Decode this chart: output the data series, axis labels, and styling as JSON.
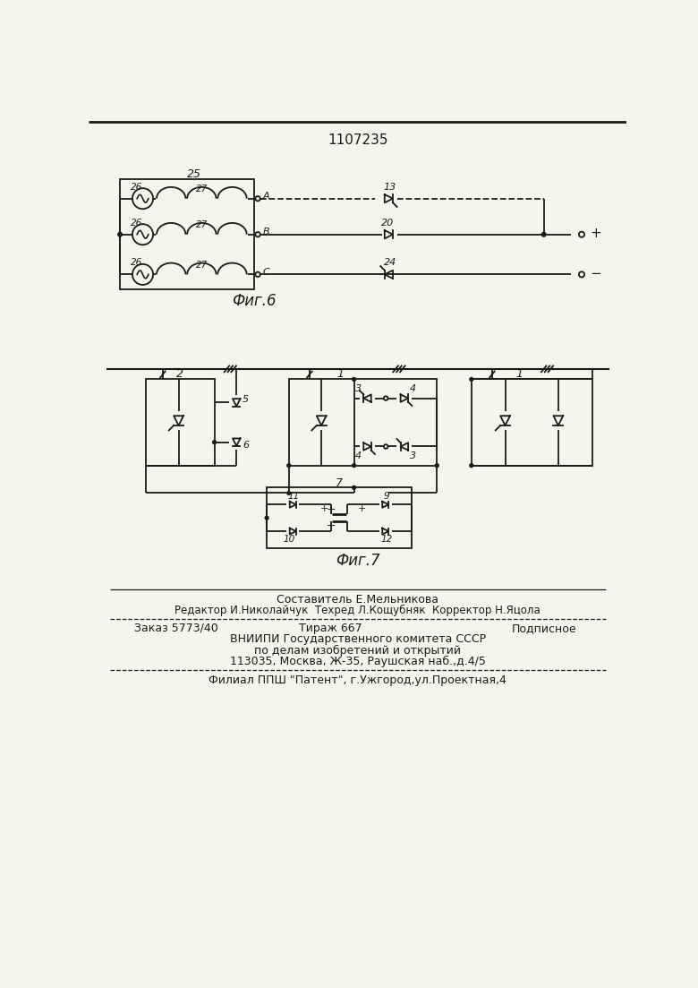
{
  "title": "1107235",
  "fig6_label": "Фиг.6",
  "fig7_label": "Фиг.7",
  "bg_color": "#f5f5f0",
  "line_color": "#1a1a1a",
  "footer": {
    "line1": "Составитель Е.Мельникова",
    "line2": "Редактор И.Николайчук  Техред Л.Кощубняк  Корректор Н.Яцола",
    "zak": "Заказ 5773/40",
    "tir": "Тираж 667",
    "pod": "Подписное",
    "vnii": "ВНИИПИ Государственного комитета СССР",
    "po": "по делам изобретений и открытий",
    "addr": "113035, Москва, Ж-35, Раушская наб.,д.4/5",
    "filial": "Филиал ППШ \"Патент\", г.Ужгород,ул.Проектная,4"
  }
}
